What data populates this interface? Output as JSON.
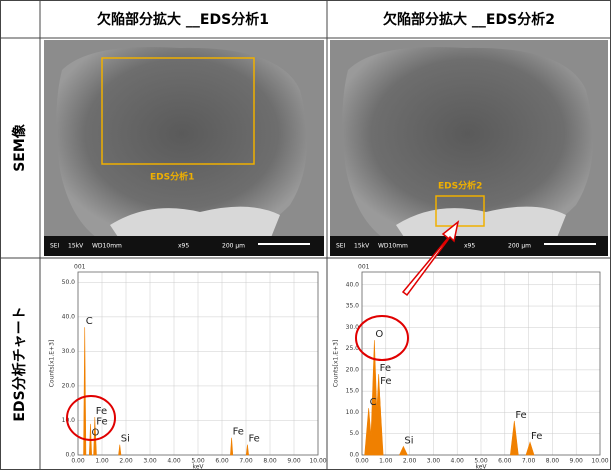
{
  "header": {
    "col1": "欠陥部分拡大 __EDS分析1",
    "col2": "欠陥部分拡大 __EDS分析2"
  },
  "rows": [
    "SEM像",
    "EDS分析チャート"
  ],
  "sem": [
    {
      "label": "EDS分析1",
      "info": [
        "SEI",
        "15kV",
        "WD10mm",
        "x95",
        "200 μm"
      ]
    },
    {
      "label": "EDS分析2",
      "info": [
        "SEI",
        "15kV",
        "WD10mm",
        "x95",
        "200 μm"
      ]
    }
  ],
  "charts": [
    {
      "id": "001",
      "ylabel": "Counts[x1.E+3]",
      "xlabel": "keV",
      "color": "#f08000",
      "xlim": [
        0,
        10
      ],
      "ylim": [
        0,
        53
      ],
      "xticks": [
        {
          "value": 0,
          "label": "0.00"
        },
        {
          "value": 1,
          "label": "1.00"
        },
        {
          "value": 2,
          "label": "2.00"
        },
        {
          "value": 3,
          "label": "3.00"
        },
        {
          "value": 4,
          "label": "4.00"
        },
        {
          "value": 5,
          "label": "5.00"
        },
        {
          "value": 6,
          "label": "6.00"
        },
        {
          "value": 7,
          "label": "7.00"
        },
        {
          "value": 8,
          "label": "8.00"
        },
        {
          "value": 9,
          "label": "9.00"
        },
        {
          "value": 10,
          "label": "10.00"
        }
      ],
      "yticks": [
        {
          "value": 0,
          "label": "0.0"
        },
        {
          "value": 10,
          "label": "10.0"
        },
        {
          "value": 20,
          "label": "20.0"
        },
        {
          "value": 30,
          "label": "30.0"
        },
        {
          "value": 40,
          "label": "40.0"
        },
        {
          "value": 50,
          "label": "50.0"
        }
      ],
      "peaks": [
        {
          "label": "C",
          "x": 0.28,
          "value": 37
        },
        {
          "label": "Fe",
          "x": 0.7,
          "value": 11
        },
        {
          "label": "Fe",
          "x": 0.72,
          "value": 8
        },
        {
          "label": "O",
          "x": 0.52,
          "value": 9
        },
        {
          "label": "Si",
          "x": 1.74,
          "value": 3
        },
        {
          "label": "Fe",
          "x": 6.4,
          "value": 5
        },
        {
          "label": "Fe",
          "x": 7.06,
          "value": 3
        }
      ]
    },
    {
      "id": "001",
      "ylabel": "Counts[x1.E+3]",
      "xlabel": "keV",
      "color": "#f08000",
      "xlim": [
        0,
        10
      ],
      "ylim": [
        0,
        43
      ],
      "xticks": [
        {
          "value": 0,
          "label": "0.00"
        },
        {
          "value": 1,
          "label": "1.00"
        },
        {
          "value": 2,
          "label": "2.00"
        },
        {
          "value": 3,
          "label": "3.00"
        },
        {
          "value": 4,
          "label": "4.00"
        },
        {
          "value": 5,
          "label": "5.00"
        },
        {
          "value": 6,
          "label": "6.00"
        },
        {
          "value": 7,
          "label": "7.00"
        },
        {
          "value": 8,
          "label": "8.00"
        },
        {
          "value": 9,
          "label": "9.00"
        },
        {
          "value": 10,
          "label": "10.00"
        }
      ],
      "yticks": [
        {
          "value": 0,
          "label": "0.0"
        },
        {
          "value": 5,
          "label": "5.0"
        },
        {
          "value": 10,
          "label": "10.0"
        },
        {
          "value": 15,
          "label": "15.0"
        },
        {
          "value": 20,
          "label": "20.0"
        },
        {
          "value": 25,
          "label": "25.0"
        },
        {
          "value": 30,
          "label": "30.0"
        },
        {
          "value": 35,
          "label": "35.0"
        },
        {
          "value": 40,
          "label": "40.0"
        }
      ],
      "peaks": [
        {
          "label": "O",
          "x": 0.52,
          "value": 27
        },
        {
          "label": "Fe",
          "x": 0.7,
          "value": 19
        },
        {
          "label": "Fe",
          "x": 0.72,
          "value": 16
        },
        {
          "label": "C",
          "x": 0.28,
          "value": 11
        },
        {
          "label": "Si",
          "x": 1.74,
          "value": 2
        },
        {
          "label": "Fe",
          "x": 6.4,
          "value": 8
        },
        {
          "label": "Fe",
          "x": 7.06,
          "value": 3
        }
      ]
    }
  ]
}
